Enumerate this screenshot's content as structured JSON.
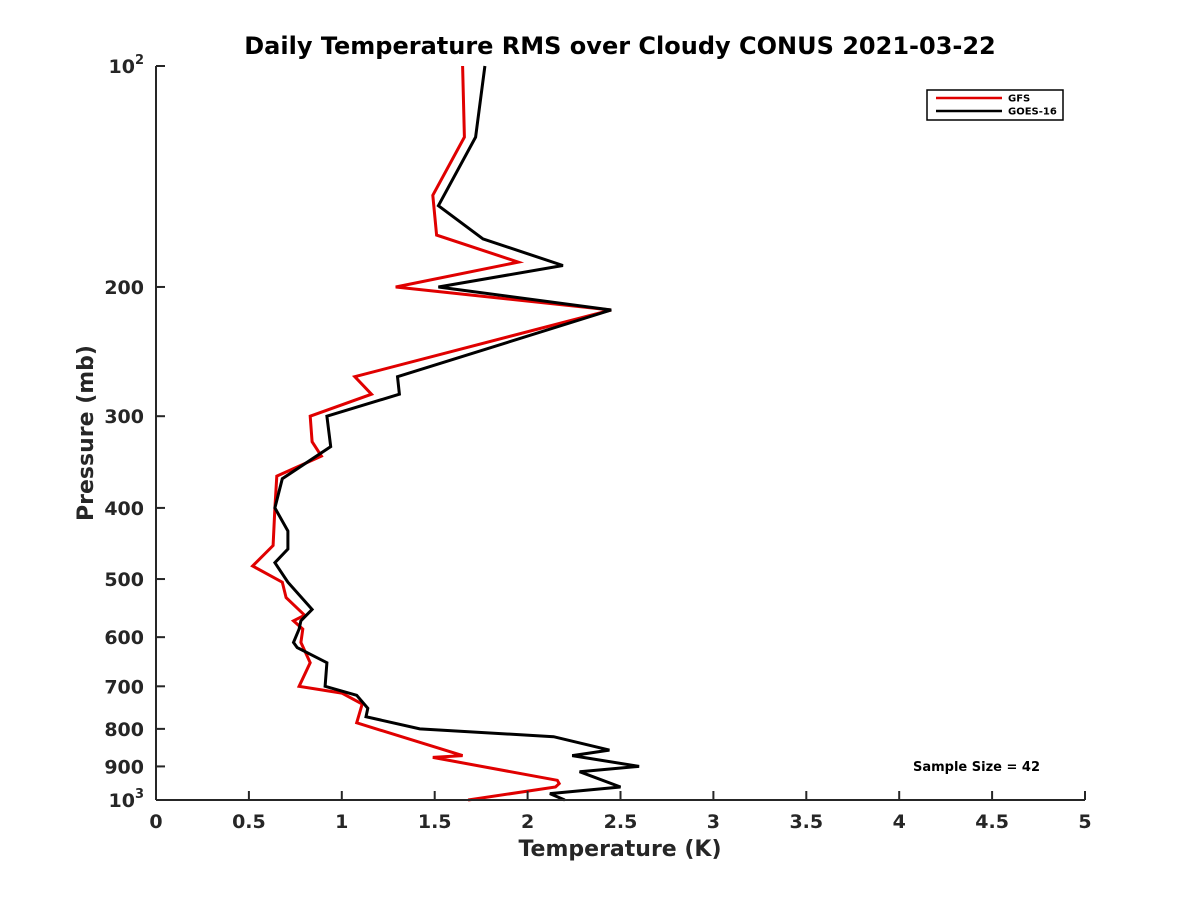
{
  "chart_data": {
    "type": "line",
    "title": "Daily Temperature RMS over Cloudy CONUS 2021-03-22",
    "xlabel": "Temperature (K)",
    "ylabel": "Pressure (mb)",
    "xlim": [
      0,
      5
    ],
    "ylim": [
      100,
      1000
    ],
    "y_scale": "log",
    "y_reversed": true,
    "grid": false,
    "legend_position": "top-right",
    "x_ticks": [
      "0",
      "0.5",
      "1",
      "1.5",
      "2",
      "2.5",
      "3",
      "3.5",
      "4",
      "4.5",
      "5"
    ],
    "y_ticks": [
      {
        "value": 100,
        "label": "10",
        "sup": "2"
      },
      {
        "value": 200,
        "label": "200",
        "sup": ""
      },
      {
        "value": 300,
        "label": "300",
        "sup": ""
      },
      {
        "value": 400,
        "label": "400",
        "sup": ""
      },
      {
        "value": 500,
        "label": "500",
        "sup": ""
      },
      {
        "value": 600,
        "label": "600",
        "sup": ""
      },
      {
        "value": 700,
        "label": "700",
        "sup": ""
      },
      {
        "value": 800,
        "label": "800",
        "sup": ""
      },
      {
        "value": 900,
        "label": "900",
        "sup": ""
      },
      {
        "value": 1000,
        "label": "10",
        "sup": "3"
      }
    ],
    "annotation": "Sample Size = 42",
    "series": [
      {
        "name": "GFS",
        "color": "#e00000",
        "points": [
          [
            1.65,
            100
          ],
          [
            1.66,
            125
          ],
          [
            1.49,
            150
          ],
          [
            1.51,
            170
          ],
          [
            1.95,
            185
          ],
          [
            1.29,
            200
          ],
          [
            2.45,
            215
          ],
          [
            1.07,
            265
          ],
          [
            1.16,
            280
          ],
          [
            0.83,
            300
          ],
          [
            0.84,
            325
          ],
          [
            0.89,
            340
          ],
          [
            0.65,
            362
          ],
          [
            0.64,
            400
          ],
          [
            0.63,
            450
          ],
          [
            0.52,
            480
          ],
          [
            0.68,
            505
          ],
          [
            0.7,
            530
          ],
          [
            0.8,
            560
          ],
          [
            0.74,
            570
          ],
          [
            0.79,
            585
          ],
          [
            0.78,
            610
          ],
          [
            0.83,
            650
          ],
          [
            0.77,
            700
          ],
          [
            1.0,
            715
          ],
          [
            1.11,
            740
          ],
          [
            1.08,
            785
          ],
          [
            1.65,
            870
          ],
          [
            1.49,
            875
          ],
          [
            2.16,
            940
          ],
          [
            2.17,
            950
          ],
          [
            2.15,
            960
          ],
          [
            1.68,
            1000
          ]
        ]
      },
      {
        "name": "GOES-16",
        "color": "#000000",
        "points": [
          [
            1.77,
            100
          ],
          [
            1.72,
            125
          ],
          [
            1.52,
            155
          ],
          [
            1.76,
            172
          ],
          [
            2.19,
            187
          ],
          [
            1.52,
            200
          ],
          [
            2.45,
            215
          ],
          [
            1.3,
            265
          ],
          [
            1.31,
            280
          ],
          [
            0.92,
            300
          ],
          [
            0.94,
            330
          ],
          [
            0.68,
            365
          ],
          [
            0.64,
            400
          ],
          [
            0.71,
            430
          ],
          [
            0.71,
            455
          ],
          [
            0.64,
            475
          ],
          [
            0.71,
            505
          ],
          [
            0.84,
            550
          ],
          [
            0.78,
            570
          ],
          [
            0.77,
            585
          ],
          [
            0.74,
            610
          ],
          [
            0.76,
            620
          ],
          [
            0.92,
            650
          ],
          [
            0.91,
            700
          ],
          [
            1.08,
            720
          ],
          [
            1.14,
            750
          ],
          [
            1.13,
            770
          ],
          [
            1.42,
            800
          ],
          [
            2.14,
            820
          ],
          [
            2.44,
            855
          ],
          [
            2.24,
            870
          ],
          [
            2.6,
            900
          ],
          [
            2.28,
            915
          ],
          [
            2.5,
            960
          ],
          [
            2.12,
            980
          ],
          [
            2.2,
            1000
          ]
        ]
      }
    ]
  }
}
